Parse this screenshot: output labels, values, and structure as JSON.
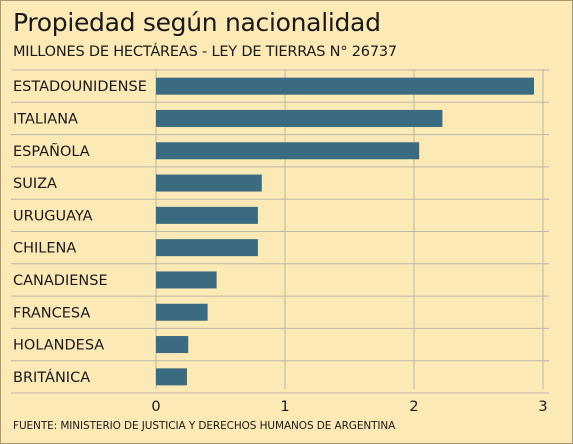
{
  "chart_data": {
    "type": "bar",
    "orientation": "horizontal",
    "title": "Propiedad según nacionalidad",
    "subtitle": "MILLONES DE HECTÁREAS - LEY DE TIERRAS N° 26737",
    "categories": [
      "ESTADOUNIDENSE",
      "ITALIANA",
      "ESPAÑOLA",
      "SUIZA",
      "URUGUAYA",
      "CHILENA",
      "CANADIENSE",
      "FRANCESA",
      "HOLANDESA",
      "BRITÁNICA"
    ],
    "values": [
      2.93,
      2.22,
      2.04,
      0.82,
      0.79,
      0.79,
      0.47,
      0.4,
      0.25,
      0.24
    ],
    "xlim": [
      0,
      3
    ],
    "xticks": [
      0,
      1,
      2,
      3
    ],
    "grid": true,
    "source": "FUENTE: MINISTERIO DE JUSTICIA Y DERECHOS HUMANOS DE ARGENTINA"
  },
  "colors": {
    "bar": "#3a6b80",
    "background": "#fbe9b6",
    "grid": "#bcb8aa"
  }
}
